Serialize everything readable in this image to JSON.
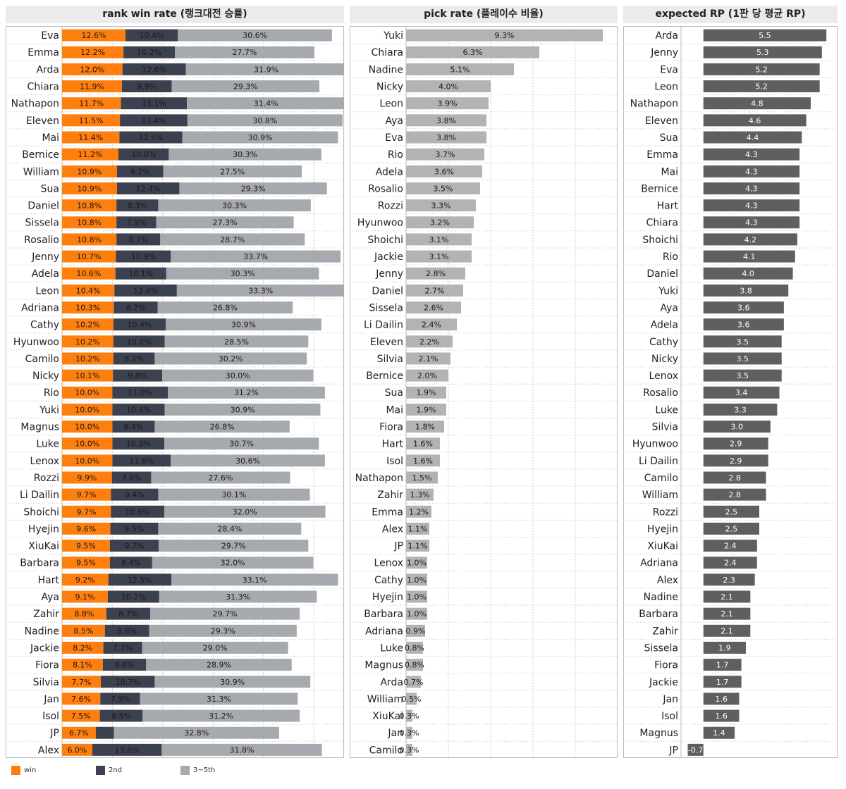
{
  "chart_data": [
    {
      "type": "bar",
      "stacked": true,
      "orientation": "horizontal",
      "title": "rank win rate (랭크대전 승률)",
      "categories": [
        "Eva",
        "Emma",
        "Arda",
        "Chiara",
        "Nathapon",
        "Eleven",
        "Mai",
        "Bernice",
        "William",
        "Sua",
        "Daniel",
        "Sissela",
        "Rosalio",
        "Jenny",
        "Adela",
        "Leon",
        "Adriana",
        "Cathy",
        "Hyunwoo",
        "Camilo",
        "Nicky",
        "Rio",
        "Yuki",
        "Magnus",
        "Luke",
        "Lenox",
        "Rozzi",
        "Li Dailin",
        "Shoichi",
        "Hyejin",
        "XiuKai",
        "Barbara",
        "Hart",
        "Aya",
        "Zahir",
        "Nadine",
        "Jackie",
        "Fiora",
        "Silvia",
        "Jan",
        "Isol",
        "JP",
        "Alex"
      ],
      "series": [
        {
          "name": "win",
          "color": "#ff7f0e",
          "labels": [
            "12.6%",
            "12.2%",
            "12.0%",
            "11.9%",
            "11.7%",
            "11.5%",
            "11.4%",
            "11.2%",
            "10.9%",
            "10.9%",
            "10.8%",
            "10.8%",
            "10.8%",
            "10.7%",
            "10.6%",
            "10.4%",
            "10.3%",
            "10.2%",
            "10.2%",
            "10.2%",
            "10.1%",
            "10.0%",
            "10.0%",
            "10.0%",
            "10.0%",
            "10.0%",
            "9.9%",
            "9.7%",
            "9.7%",
            "9.6%",
            "9.5%",
            "9.5%",
            "9.2%",
            "9.1%",
            "8.8%",
            "8.5%",
            "8.2%",
            "8.1%",
            "7.7%",
            "7.6%",
            "7.5%",
            "6.7%",
            "6.0%"
          ],
          "values": [
            12.6,
            12.2,
            12.0,
            11.9,
            11.7,
            11.5,
            11.4,
            11.2,
            10.9,
            10.9,
            10.8,
            10.8,
            10.8,
            10.7,
            10.6,
            10.4,
            10.3,
            10.2,
            10.2,
            10.2,
            10.1,
            10.0,
            10.0,
            10.0,
            10.0,
            10.0,
            9.9,
            9.7,
            9.7,
            9.6,
            9.5,
            9.5,
            9.2,
            9.1,
            8.8,
            8.5,
            8.2,
            8.1,
            7.7,
            7.6,
            7.5,
            6.7,
            6.0
          ]
        },
        {
          "name": "2nd",
          "color": "#3c4150",
          "labels": [
            "10.4%",
            "10.2%",
            "12.6%",
            "9.9%",
            "13.1%",
            "13.4%",
            "12.5%",
            "10.0%",
            "9.2%",
            "12.4%",
            "8.3%",
            "7.9%",
            "8.7%",
            "10.9%",
            "10.1%",
            "12.4%",
            "8.7%",
            "10.4%",
            "10.2%",
            "8.2%",
            "9.8%",
            "11.0%",
            "10.4%",
            "8.4%",
            "10.3%",
            "11.6%",
            "7.8%",
            "9.4%",
            "10.6%",
            "9.5%",
            "9.7%",
            "8.4%",
            "12.5%",
            "10.2%",
            "8.7%",
            "8.8%",
            "7.7%",
            "8.6%",
            "10.7%",
            "7.9%",
            "8.5%",
            "",
            "13.8%"
          ],
          "values": [
            10.4,
            10.2,
            12.6,
            9.9,
            13.1,
            13.4,
            12.5,
            10.0,
            9.2,
            12.4,
            8.3,
            7.9,
            8.7,
            10.9,
            10.1,
            12.4,
            8.7,
            10.4,
            10.2,
            8.2,
            9.8,
            11.0,
            10.4,
            8.4,
            10.3,
            11.6,
            7.8,
            9.4,
            10.6,
            9.5,
            9.7,
            8.4,
            12.5,
            10.2,
            8.7,
            8.8,
            7.7,
            8.6,
            10.7,
            7.9,
            8.5,
            3.6,
            13.8
          ]
        },
        {
          "name": "3~5th",
          "color": "#a6a9ad",
          "labels": [
            "30.6%",
            "27.7%",
            "31.9%",
            "29.3%",
            "31.4%",
            "30.8%",
            "30.9%",
            "30.3%",
            "27.5%",
            "29.3%",
            "30.3%",
            "27.3%",
            "28.7%",
            "33.7%",
            "30.3%",
            "33.3%",
            "26.8%",
            "30.9%",
            "28.5%",
            "30.2%",
            "30.0%",
            "31.2%",
            "30.9%",
            "26.8%",
            "30.7%",
            "30.6%",
            "27.6%",
            "30.1%",
            "32.0%",
            "28.4%",
            "29.7%",
            "32.0%",
            "33.1%",
            "31.3%",
            "29.7%",
            "29.3%",
            "29.0%",
            "28.9%",
            "30.9%",
            "31.3%",
            "31.2%",
            "32.8%",
            "31.8%"
          ],
          "values": [
            30.6,
            27.7,
            31.9,
            29.3,
            31.4,
            30.8,
            30.9,
            30.3,
            27.5,
            29.3,
            30.3,
            27.3,
            28.7,
            33.7,
            30.3,
            33.3,
            26.8,
            30.9,
            28.5,
            30.2,
            30.0,
            31.2,
            30.9,
            26.8,
            30.7,
            30.6,
            27.6,
            30.1,
            32.0,
            28.4,
            29.7,
            32.0,
            33.1,
            31.3,
            29.7,
            29.3,
            29.0,
            28.9,
            30.9,
            31.3,
            31.2,
            32.8,
            31.8
          ]
        }
      ],
      "xlim": [
        0,
        56
      ],
      "grid": true
    },
    {
      "type": "bar",
      "orientation": "horizontal",
      "title": "pick rate (플레이수 비율)",
      "color": "#b3b3b3",
      "categories": [
        "Yuki",
        "Chiara",
        "Nadine",
        "Nicky",
        "Leon",
        "Aya",
        "Eva",
        "Rio",
        "Adela",
        "Rosalio",
        "Rozzi",
        "Hyunwoo",
        "Shoichi",
        "Jackie",
        "Jenny",
        "Daniel",
        "Sissela",
        "Li Dailin",
        "Eleven",
        "Silvia",
        "Bernice",
        "Sua",
        "Mai",
        "Fiora",
        "Hart",
        "Isol",
        "Nathapon",
        "Zahir",
        "Emma",
        "Alex",
        "JP",
        "Lenox",
        "Cathy",
        "Hyejin",
        "Barbara",
        "Adriana",
        "Luke",
        "Magnus",
        "Arda",
        "William",
        "XiuKai",
        "Jan",
        "Camilo"
      ],
      "labels": [
        "9.3%",
        "6.3%",
        "5.1%",
        "4.0%",
        "3.9%",
        "3.8%",
        "3.8%",
        "3.7%",
        "3.6%",
        "3.5%",
        "3.3%",
        "3.2%",
        "3.1%",
        "3.1%",
        "2.8%",
        "2.7%",
        "2.6%",
        "2.4%",
        "2.2%",
        "2.1%",
        "2.0%",
        "1.9%",
        "1.9%",
        "1.8%",
        "1.6%",
        "1.6%",
        "1.5%",
        "1.3%",
        "1.2%",
        "1.1%",
        "1.1%",
        "1.0%",
        "1.0%",
        "1.0%",
        "1.0%",
        "0.9%",
        "0.8%",
        "0.8%",
        "0.7%",
        "0.5%",
        "0.3%",
        "0.3%",
        "0.3%"
      ],
      "values": [
        9.3,
        6.3,
        5.1,
        4.0,
        3.9,
        3.8,
        3.8,
        3.7,
        3.6,
        3.5,
        3.3,
        3.2,
        3.1,
        3.1,
        2.8,
        2.7,
        2.6,
        2.4,
        2.2,
        2.1,
        2.0,
        1.9,
        1.9,
        1.8,
        1.6,
        1.6,
        1.5,
        1.3,
        1.2,
        1.1,
        1.1,
        1.0,
        1.0,
        1.0,
        1.0,
        0.9,
        0.8,
        0.8,
        0.7,
        0.5,
        0.3,
        0.3,
        0.3
      ],
      "xlim": [
        0,
        10
      ],
      "grid": true
    },
    {
      "type": "bar",
      "orientation": "horizontal",
      "title": "expected RP (1판 당 평균 RP)",
      "color": "#5f5f5f",
      "categories": [
        "Arda",
        "Jenny",
        "Eva",
        "Leon",
        "Nathapon",
        "Eleven",
        "Sua",
        "Emma",
        "Mai",
        "Bernice",
        "Hart",
        "Chiara",
        "Shoichi",
        "Rio",
        "Daniel",
        "Yuki",
        "Aya",
        "Adela",
        "Cathy",
        "Nicky",
        "Lenox",
        "Rosalio",
        "Luke",
        "Silvia",
        "Hyunwoo",
        "Li Dailin",
        "Camilo",
        "William",
        "Rozzi",
        "Hyejin",
        "XiuKai",
        "Adriana",
        "Alex",
        "Nadine",
        "Barbara",
        "Zahir",
        "Sissela",
        "Fiora",
        "Jackie",
        "Jan",
        "Isol",
        "Magnus",
        "JP"
      ],
      "labels": [
        "5.5",
        "5.3",
        "5.2",
        "5.2",
        "4.8",
        "4.6",
        "4.4",
        "4.3",
        "4.3",
        "4.3",
        "4.3",
        "4.3",
        "4.2",
        "4.1",
        "4.0",
        "3.8",
        "3.6",
        "3.6",
        "3.5",
        "3.5",
        "3.5",
        "3.4",
        "3.3",
        "3.0",
        "2.9",
        "2.9",
        "2.8",
        "2.8",
        "2.5",
        "2.5",
        "2.4",
        "2.4",
        "2.3",
        "2.1",
        "2.1",
        "2.1",
        "1.9",
        "1.7",
        "1.7",
        "1.6",
        "1.6",
        "1.4",
        "-0.7"
      ],
      "values": [
        5.5,
        5.3,
        5.2,
        5.2,
        4.8,
        4.6,
        4.4,
        4.3,
        4.3,
        4.3,
        4.3,
        4.3,
        4.2,
        4.1,
        4.0,
        3.8,
        3.6,
        3.6,
        3.5,
        3.5,
        3.5,
        3.4,
        3.3,
        3.0,
        2.9,
        2.9,
        2.8,
        2.8,
        2.5,
        2.5,
        2.4,
        2.4,
        2.3,
        2.1,
        2.1,
        2.1,
        1.9,
        1.7,
        1.7,
        1.6,
        1.6,
        1.4,
        -0.7
      ],
      "xlim": [
        -1,
        6
      ],
      "grid": false
    }
  ],
  "legend": [
    {
      "label": "win",
      "color": "#ff7f0e"
    },
    {
      "label": "2nd",
      "color": "#3c4150"
    },
    {
      "label": "3~5th",
      "color": "#a6a9ad"
    }
  ]
}
